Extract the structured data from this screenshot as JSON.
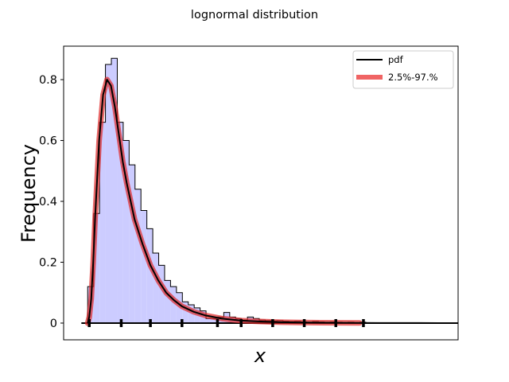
{
  "chart_data": {
    "type": "histogram-with-curve",
    "title": "lognormal distribution",
    "xlabel": "x",
    "ylabel": "Frequency",
    "xlim": [
      0.0,
      1.0
    ],
    "ylim": [
      -0.055,
      0.91
    ],
    "yticks": [
      0.0,
      0.2,
      0.4,
      0.6,
      0.8
    ],
    "ytick_labels": [
      "0",
      "0.2",
      "0.4",
      "0.6",
      "0.8"
    ],
    "grid": false,
    "legend_position": "top-right",
    "legend": [
      {
        "label": "pdf",
        "color": "#000000",
        "style": "line"
      },
      {
        "label": "2.5%-97.%",
        "color": "#f06464",
        "style": "thick-line"
      }
    ],
    "histogram": {
      "fill_color": "#ccccff",
      "edge_color": "#000000",
      "bin_edges": [
        0.061,
        0.076,
        0.091,
        0.106,
        0.121,
        0.136,
        0.151,
        0.166,
        0.181,
        0.196,
        0.211,
        0.226,
        0.241,
        0.256,
        0.271,
        0.286,
        0.301,
        0.316,
        0.331,
        0.346,
        0.361,
        0.376,
        0.391,
        0.406,
        0.421,
        0.436,
        0.451,
        0.466,
        0.481,
        0.496,
        0.511,
        0.526,
        0.541,
        0.556,
        0.571,
        0.586,
        0.601,
        0.616,
        0.631,
        0.646,
        0.661,
        0.676,
        0.691,
        0.706,
        0.721,
        0.736,
        0.751,
        0.766,
        0.781
      ],
      "values": [
        0.12,
        0.36,
        0.66,
        0.85,
        0.87,
        0.66,
        0.6,
        0.52,
        0.44,
        0.37,
        0.31,
        0.23,
        0.19,
        0.14,
        0.12,
        0.1,
        0.07,
        0.06,
        0.05,
        0.04,
        0.015,
        0.015,
        0.02,
        0.035,
        0.02,
        0.015,
        0.01,
        0.02,
        0.015,
        0.01,
        0.008,
        0.007,
        0.008,
        0.006,
        0.005,
        0.006,
        0.004,
        0.003,
        0.005,
        0.004,
        0.003,
        0.004,
        0.003,
        0.0,
        0.003,
        0.0,
        0.003,
        0.0
      ]
    },
    "pdf_curve": {
      "color": "#000000",
      "x": [
        0.061,
        0.065,
        0.07,
        0.075,
        0.08,
        0.09,
        0.1,
        0.11,
        0.12,
        0.13,
        0.14,
        0.15,
        0.16,
        0.18,
        0.2,
        0.22,
        0.24,
        0.26,
        0.28,
        0.3,
        0.33,
        0.36,
        0.4,
        0.45,
        0.5,
        0.55,
        0.6,
        0.65,
        0.7,
        0.75,
        0.8,
        0.85,
        0.9,
        0.95,
        1.0
      ],
      "y": [
        0.0,
        0.02,
        0.08,
        0.2,
        0.35,
        0.6,
        0.75,
        0.8,
        0.78,
        0.71,
        0.62,
        0.53,
        0.46,
        0.34,
        0.26,
        0.19,
        0.14,
        0.1,
        0.075,
        0.055,
        0.037,
        0.025,
        0.015,
        0.008,
        0.005,
        0.003,
        0.002,
        0.0012,
        0.0008,
        0.0005,
        0.0003,
        0.0002,
        0.0001,
        0.0,
        0.0
      ]
    },
    "interval_band": {
      "label": "2.5%-97.%",
      "color": "#e02828",
      "x_start": 0.061,
      "x_end": 0.76
    },
    "rug_ticks": [
      0.065,
      0.146,
      0.22,
      0.3,
      0.39,
      0.45,
      0.53,
      0.61,
      0.69,
      0.76
    ]
  }
}
